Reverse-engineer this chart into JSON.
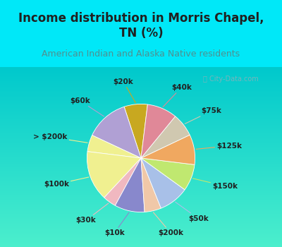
{
  "title": "Income distribution in Morris Chapel,\nTN (%)",
  "subtitle": "American Indian and Alaska Native residents",
  "watermark": "ⓘ City-Data.com",
  "labels": [
    "$20k",
    "$60k",
    "> $200k",
    "$100k",
    "$30k",
    "$10k",
    "$200k",
    "$50k",
    "$150k",
    "$125k",
    "$75k",
    "$40k"
  ],
  "sizes": [
    7,
    13,
    5,
    15,
    4,
    9,
    5,
    9,
    8,
    9,
    7,
    9
  ],
  "colors": [
    "#c8a820",
    "#b0a0d4",
    "#f0f090",
    "#f0f090",
    "#f0b8c0",
    "#8888cc",
    "#f0c8a8",
    "#a8c0e8",
    "#c0e870",
    "#f0a860",
    "#d0c8b0",
    "#e08898"
  ],
  "bg_top": "#00e8f8",
  "bg_chart_color1": "#e8f8f0",
  "bg_chart_color2": "#c8e8d8",
  "title_color": "#202020",
  "subtitle_color": "#509090",
  "label_fontsize": 7.5,
  "label_fontweight": "bold",
  "startangle": 83,
  "title_fontsize": 12,
  "subtitle_fontsize": 9
}
